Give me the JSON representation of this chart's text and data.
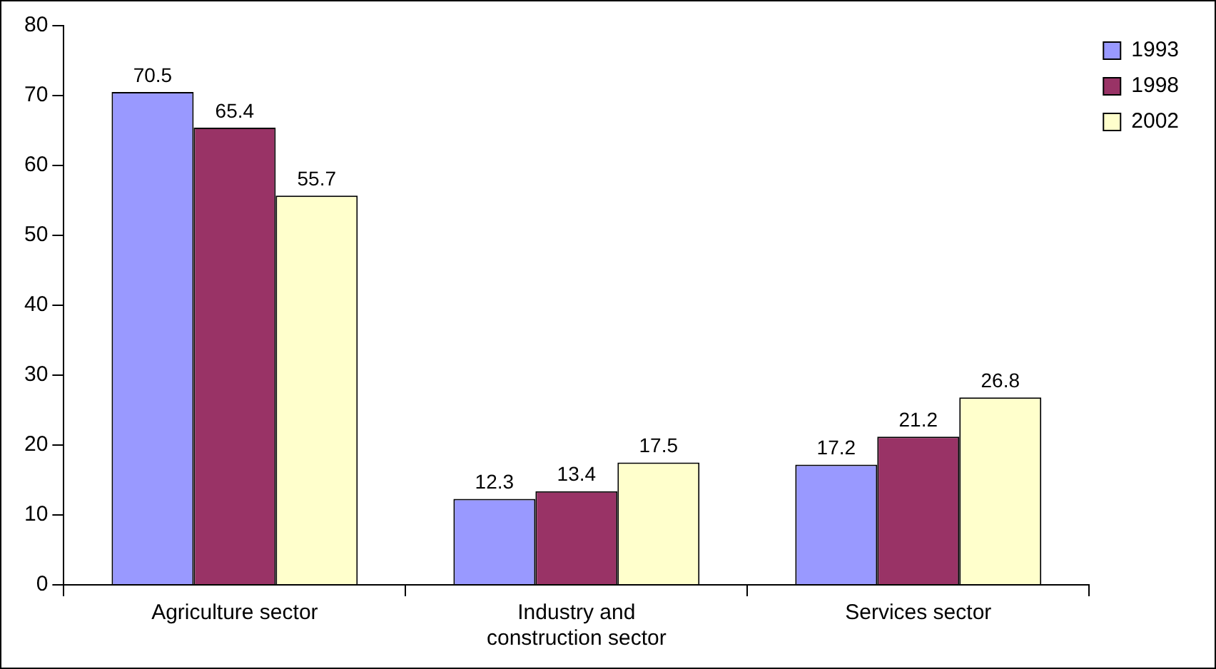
{
  "chart_data": {
    "type": "bar",
    "categories": [
      "Agriculture sector",
      "Industry and construction sector",
      "Services sector"
    ],
    "series": [
      {
        "name": "1993",
        "color": "#9999ff",
        "values": [
          70.5,
          12.3,
          17.2
        ]
      },
      {
        "name": "1998",
        "color": "#993366",
        "values": [
          65.4,
          13.4,
          21.2
        ]
      },
      {
        "name": "2002",
        "color": "#ffffcc",
        "values": [
          55.7,
          17.5,
          26.8
        ]
      }
    ],
    "ylim": [
      0,
      80
    ],
    "yticks": [
      0,
      10,
      20,
      30,
      40,
      50,
      60,
      70,
      80
    ],
    "grid": false,
    "legend": "top right",
    "data_labels": true
  }
}
